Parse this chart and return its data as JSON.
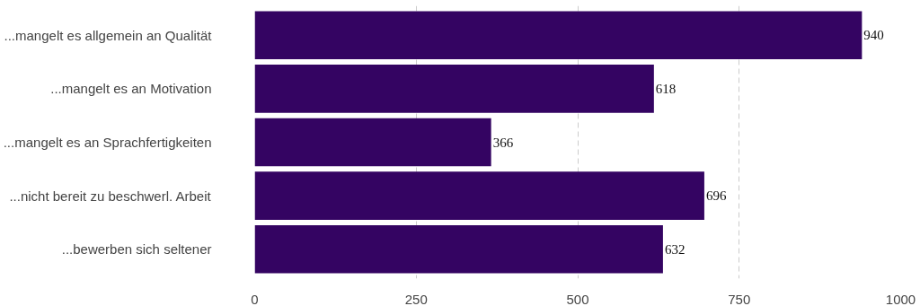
{
  "chart_data": {
    "type": "bar",
    "orientation": "horizontal",
    "categories": [
      "...mangelt es allgemein an Qualität",
      "...mangelt es an Motivation",
      "...mangelt es an Sprachfertigkeiten",
      "...nicht bereit zu beschwerl. Arbeit",
      "...bewerben sich seltener"
    ],
    "values": [
      940,
      618,
      366,
      696,
      632
    ],
    "color": "#340462",
    "xlim": [
      0,
      1000
    ],
    "xticks": [
      0,
      250,
      500,
      750,
      1000
    ],
    "grid": "x",
    "data_labels": true
  }
}
